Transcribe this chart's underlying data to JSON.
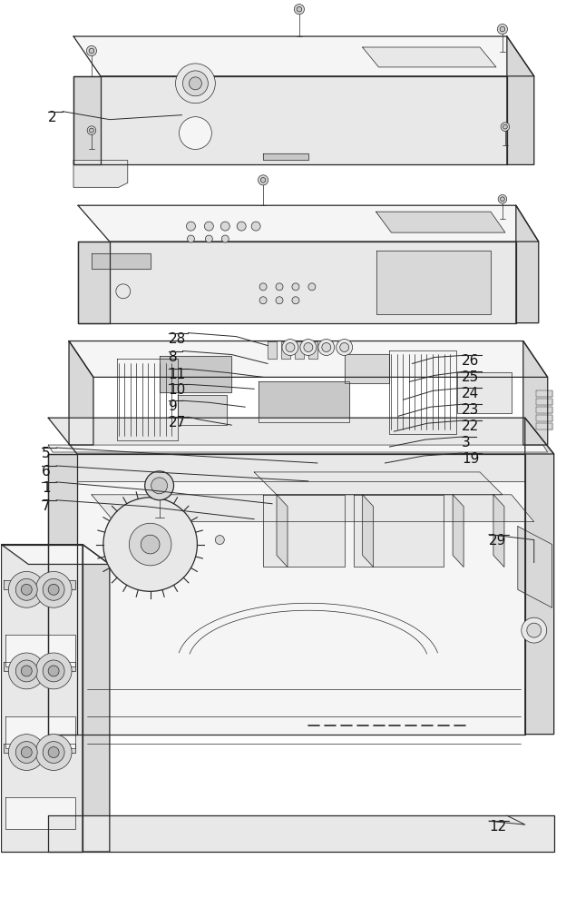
{
  "bg_color": "#ffffff",
  "line_color": "#2a2a2a",
  "label_color": "#111111",
  "figsize": [
    6.24,
    10.0
  ],
  "dpi": 100,
  "fill_light": "#f5f5f5",
  "fill_mid": "#e8e8e8",
  "fill_dark": "#d8d8d8",
  "fill_darker": "#c8c8c8",
  "fill_darkest": "#b0b0b0",
  "lw_main": 0.9,
  "lw_thin": 0.5,
  "lw_label": 0.7
}
